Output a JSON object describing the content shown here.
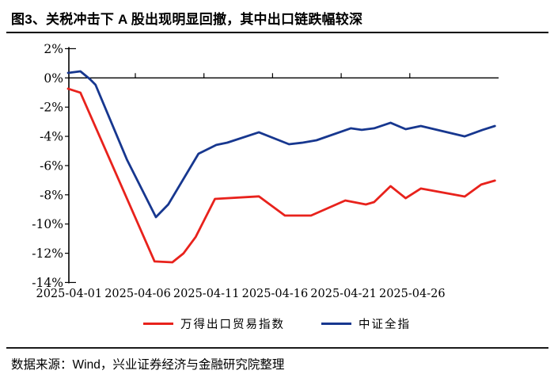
{
  "header": {
    "title": "图3、关税冲击下 A 股出现明显回撤，其中出口链跌幅较深"
  },
  "footer": {
    "source": "数据来源：Wind，兴业证券经济与金融研究院整理"
  },
  "legend": {
    "items": [
      {
        "label": "万得出口贸易指数",
        "color": "#e8221c"
      },
      {
        "label": "中证全指",
        "color": "#17378f"
      }
    ]
  },
  "chart_data": {
    "type": "line",
    "title": "图3、关税冲击下 A 股出现明显回撤，其中出口链跌幅较深",
    "xlabel": "",
    "ylabel": "",
    "grid": false,
    "zero_line": true,
    "legend_position": "bottom",
    "x_axis": {
      "unit": "days since 2025-04-01",
      "range_days": [
        0,
        31.2
      ],
      "tick_day_offsets": [
        0,
        5,
        10,
        15,
        20,
        25
      ],
      "tick_labels": [
        "2025-04-01",
        "2025-04-06",
        "2025-04-11",
        "2025-04-16",
        "2025-04-21",
        "2025-04-26"
      ]
    },
    "y_axis": {
      "min": -14,
      "max": 2,
      "step": 2,
      "format": "percent",
      "tick_values": [
        2,
        0,
        -2,
        -4,
        -6,
        -8,
        -10,
        -12,
        -14
      ],
      "tick_labels": [
        "2%",
        "0%",
        "-2%",
        "-4%",
        "-6%",
        "-8%",
        "-10%",
        "-12%",
        "-14%"
      ]
    },
    "series": [
      {
        "name": "万得出口贸易指数",
        "color": "#e8221c",
        "points": [
          [
            0.1,
            -0.74
          ],
          [
            1.0,
            -1.01
          ],
          [
            6.4,
            -12.56
          ],
          [
            7.7,
            -12.62
          ],
          [
            8.5,
            -12.02
          ],
          [
            9.4,
            -10.88
          ],
          [
            10.8,
            -8.28
          ],
          [
            14.0,
            -8.11
          ],
          [
            15.9,
            -9.42
          ],
          [
            17.8,
            -9.42
          ],
          [
            20.3,
            -8.39
          ],
          [
            21.8,
            -8.66
          ],
          [
            22.4,
            -8.5
          ],
          [
            23.6,
            -7.41
          ],
          [
            24.7,
            -8.23
          ],
          [
            25.8,
            -7.57
          ],
          [
            29.0,
            -8.12
          ],
          [
            30.2,
            -7.3
          ],
          [
            31.2,
            -7.03
          ]
        ]
      },
      {
        "name": "中证全指",
        "color": "#17378f",
        "points": [
          [
            0.1,
            0.34
          ],
          [
            1.0,
            0.45
          ],
          [
            1.7,
            -0.09
          ],
          [
            2.1,
            -0.47
          ],
          [
            4.4,
            -5.62
          ],
          [
            6.5,
            -9.53
          ],
          [
            7.4,
            -8.66
          ],
          [
            9.6,
            -5.19
          ],
          [
            10.9,
            -4.59
          ],
          [
            11.7,
            -4.43
          ],
          [
            14.0,
            -3.72
          ],
          [
            16.2,
            -4.54
          ],
          [
            17.2,
            -4.43
          ],
          [
            18.2,
            -4.27
          ],
          [
            20.7,
            -3.45
          ],
          [
            21.5,
            -3.56
          ],
          [
            22.4,
            -3.45
          ],
          [
            23.6,
            -3.07
          ],
          [
            24.7,
            -3.51
          ],
          [
            25.8,
            -3.29
          ],
          [
            29.0,
            -4.0
          ],
          [
            30.3,
            -3.56
          ],
          [
            31.2,
            -3.29
          ]
        ]
      }
    ]
  }
}
